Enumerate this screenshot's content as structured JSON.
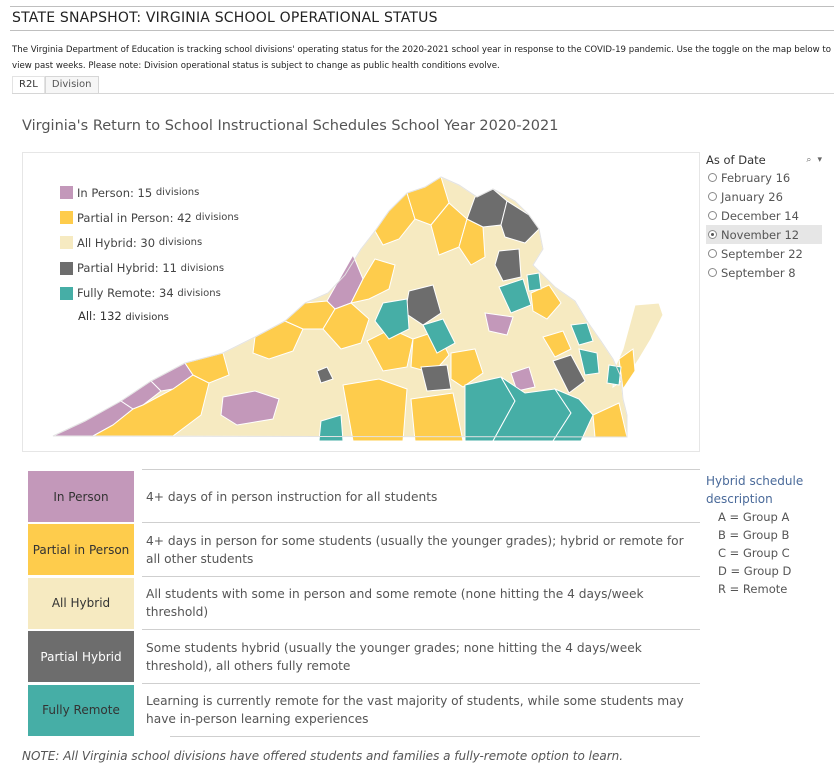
{
  "page": {
    "title": "STATE SNAPSHOT: VIRGINIA SCHOOL OPERATIONAL STATUS",
    "intro": "The Virginia Department of Education is tracking school divisions' operating status  for the 2020-2021 school year in response to the COVID-19 pandemic. Use the toggle on the map below to view past weeks. Please note: Division operational status is subject to change as public health conditions evolve."
  },
  "tabs": [
    "R2L",
    "Division"
  ],
  "viz_title": "Virginia's Return to School Instructional Schedules School Year 2020-2021",
  "colors": {
    "in_person": "#c398ba",
    "partial_in_person": "#fecc4c",
    "all_hybrid": "#f6eac1",
    "partial_hybrid": "#6d6d6d",
    "fully_remote": "#46aea6",
    "accent_link": "#4a6a9a"
  },
  "legend": [
    {
      "label": "In Person:",
      "count": "15",
      "unit": "divisions",
      "color": "#c398ba"
    },
    {
      "label": "Partial in Person:",
      "count": "42",
      "unit": "divisions",
      "color": "#fecc4c"
    },
    {
      "label": "All Hybrid:",
      "count": "30",
      "unit": "divisions",
      "color": "#f6eac1"
    },
    {
      "label": "Partial Hybrid:",
      "count": "11",
      "unit": "divisions",
      "color": "#6d6d6d"
    },
    {
      "label": "Fully Remote:",
      "count": "34",
      "unit": "divisions",
      "color": "#46aea6"
    }
  ],
  "legend_all": {
    "label": "All:",
    "count": "132",
    "unit": "divisions"
  },
  "filter": {
    "title": "As of Date",
    "options": [
      "February 16",
      "January 26",
      "December 14",
      "November 12",
      "September 22",
      "September 8"
    ],
    "selected": "November 12",
    "search_icon": "search-icon",
    "menu_icon": "dropdown-arrow-icon"
  },
  "descriptions": [
    {
      "label": "In Person",
      "text": "4+ days of in person instruction for all students",
      "color": "#c398ba",
      "text_color": "#333333"
    },
    {
      "label": "Partial in Person",
      "text": "4+ days in person for some students (usually the younger grades); hybrid or remote for all other students",
      "color": "#fecc4c",
      "text_color": "#333333"
    },
    {
      "label": "All Hybrid",
      "text": "All students with some in person and some remote (none hitting the 4 days/week threshold)",
      "color": "#f6eac1",
      "text_color": "#333333"
    },
    {
      "label": "Partial Hybrid",
      "text": "Some students hybrid (usually the younger grades; none hitting the 4 days/week threshold), all others fully remote",
      "color": "#6d6d6d",
      "text_color": "#ffffff"
    },
    {
      "label": "Fully Remote",
      "text": "Learning is currently remote for the vast majority of students, while some students may have in-person learning experiences",
      "color": "#46aea6",
      "text_color": "#333333"
    }
  ],
  "hybrid_schedule": {
    "title": "Hybrid schedule description",
    "items": [
      "A = Group A",
      "B = Group B",
      "C = Group C",
      "D = Group D",
      "R = Remote"
    ]
  },
  "note": "NOTE: All Virginia school divisions have offered students and families a fully-remote option to learn."
}
